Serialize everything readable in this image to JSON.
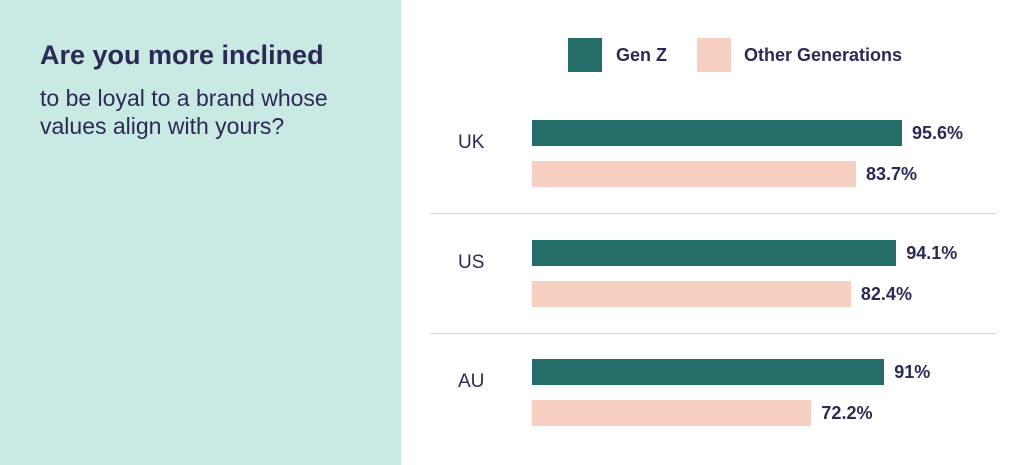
{
  "question": {
    "title": "Are you more inclined",
    "subtitle": "to be loyal to a brand whose values align with yours?"
  },
  "legend": {
    "series1": "Gen Z",
    "series2": "Other Generations"
  },
  "colors": {
    "genz": "#256d69",
    "other": "#f7d0c2",
    "text": "#2b2a55",
    "panel": "#c9e9e3"
  },
  "chart_data": {
    "type": "bar",
    "orientation": "horizontal",
    "categories": [
      "UK",
      "US",
      "AU"
    ],
    "series": [
      {
        "name": "Gen Z",
        "values": [
          95.6,
          94.1,
          91
        ]
      },
      {
        "name": "Other Generations",
        "values": [
          83.7,
          82.4,
          72.2
        ]
      }
    ],
    "value_labels": [
      [
        "95.6%",
        "94.1%",
        "91%"
      ],
      [
        "83.7%",
        "82.4%",
        "72.2%"
      ]
    ],
    "legend_position": "top",
    "grid": false
  }
}
